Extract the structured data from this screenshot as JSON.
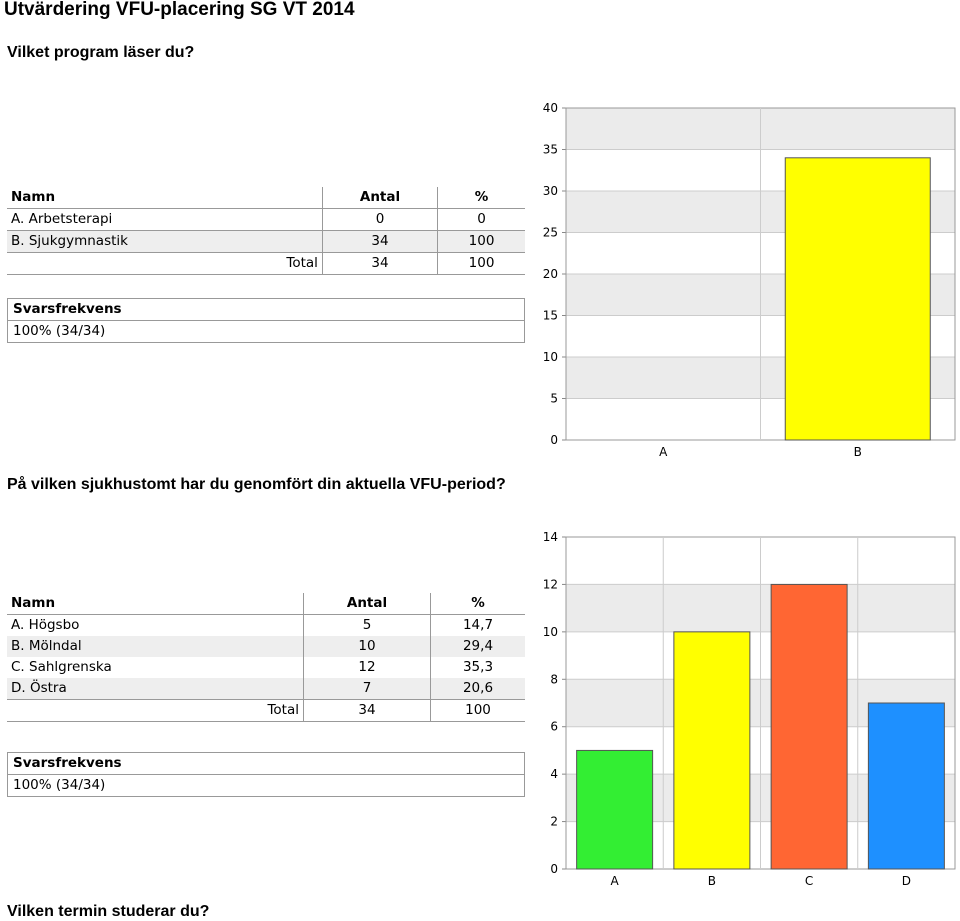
{
  "page": {
    "title": "Utvärdering VFU-placering SG VT 2014"
  },
  "q1": {
    "question": "Vilket program läser du?",
    "table": {
      "headers": [
        "Namn",
        "Antal",
        "%"
      ],
      "rows": [
        {
          "name": "A. Arbetsterapi",
          "count": "0",
          "pct": "0"
        },
        {
          "name": "B. Sjukgymnastik",
          "count": "34",
          "pct": "100"
        }
      ],
      "total": {
        "label": "Total",
        "count": "34",
        "pct": "100"
      }
    },
    "response": {
      "label": "Svarsfrekvens",
      "value": "100% (34/34)"
    }
  },
  "q2": {
    "question": "På vilken sjukhustomt har du genomfört din aktuella VFU-period?",
    "table": {
      "headers": [
        "Namn",
        "Antal",
        "%"
      ],
      "rows": [
        {
          "name": "A. Högsbo",
          "count": "5",
          "pct": "14,7"
        },
        {
          "name": "B. Mölndal",
          "count": "10",
          "pct": "29,4"
        },
        {
          "name": "C. Sahlgrenska",
          "count": "12",
          "pct": "35,3"
        },
        {
          "name": "D. Östra",
          "count": "7",
          "pct": "20,6"
        }
      ],
      "total": {
        "label": "Total",
        "count": "34",
        "pct": "100"
      }
    },
    "response": {
      "label": "Svarsfrekvens",
      "value": "100% (34/34)"
    }
  },
  "q3": {
    "question": "Vilken termin studerar du?"
  },
  "chart_data": [
    {
      "type": "bar",
      "categories": [
        "A",
        "B"
      ],
      "values": [
        0,
        34
      ],
      "colors": [
        "#ffff00",
        "#ffff00"
      ],
      "ylim": [
        0,
        40
      ],
      "yticks": [
        0,
        5,
        10,
        15,
        20,
        25,
        30,
        35,
        40
      ],
      "grid": true
    },
    {
      "type": "bar",
      "categories": [
        "A",
        "B",
        "C",
        "D"
      ],
      "values": [
        5,
        10,
        12,
        7
      ],
      "colors": [
        "#33ee33",
        "#ffff00",
        "#ff6633",
        "#1e90ff"
      ],
      "ylim": [
        0,
        14
      ],
      "yticks": [
        0,
        2,
        4,
        6,
        8,
        10,
        12,
        14
      ],
      "grid": true
    }
  ]
}
